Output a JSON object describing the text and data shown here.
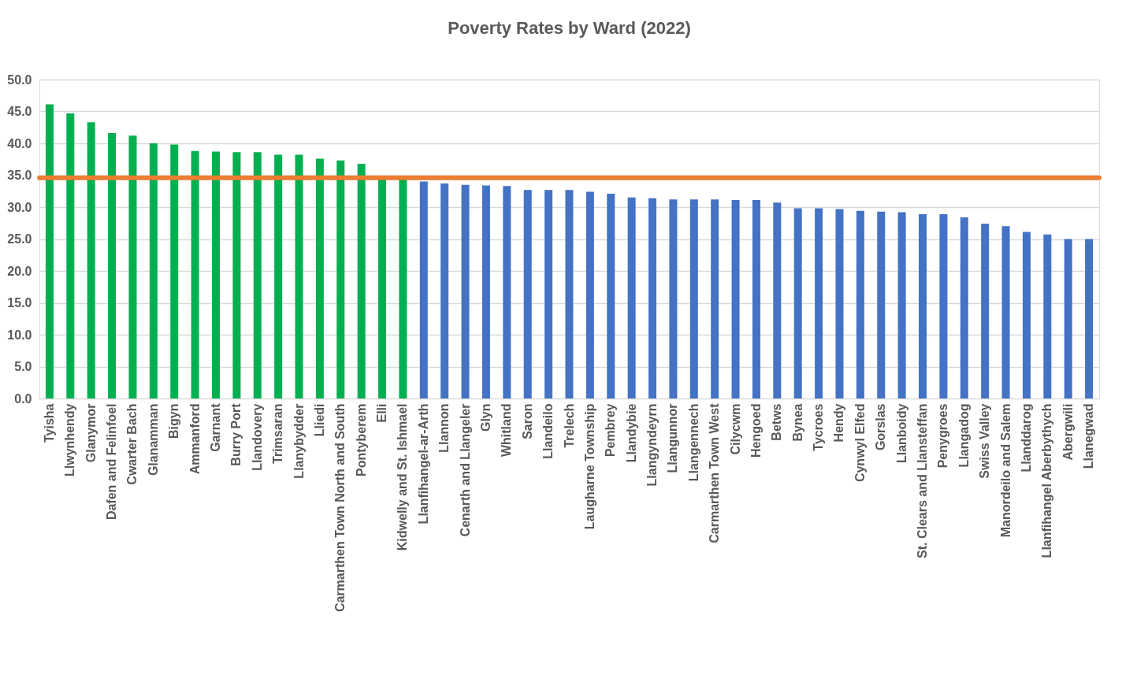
{
  "chart_data": {
    "type": "bar",
    "title": "Poverty Rates by Ward (2022)",
    "categories": [
      "Tyisha",
      "Llwynhendy",
      "Glanymor",
      "Dafen and Felinfoel",
      "Cwarter Bach",
      "Glanamman",
      "Bigyn",
      "Ammanford",
      "Garnant",
      "Burry Port",
      "Llandovery",
      "Trimsaran",
      "Llanybydder",
      "Lliedi",
      "Carmarthen Town North and South",
      "Pontyberem",
      "Elli",
      "Kidwelly and St. Ishmael",
      "Llanfihangel-ar-Arth",
      "Llannon",
      "Cenarth and Llangeler",
      "Glyn",
      "Whitland",
      "Saron",
      "Llandeilo",
      "Trelech",
      "Laugharne Township",
      "Pembrey",
      "Llandybie",
      "Llangyndeyrn",
      "Llangunnor",
      "Llangennech",
      "Carmarthen Town West",
      "Cilycwm",
      "Hengoed",
      "Betws",
      "Bynea",
      "Tycroes",
      "Hendy",
      "Cynwyl Elfed",
      "Gorslas",
      "Llanboidy",
      "St. Clears and Llansteffan",
      "Penygroes",
      "Llangadog",
      "Swiss Valley",
      "Manordeilo and Salem",
      "Llanddarog",
      "Llanfihangel Aberbythych",
      "Abergwili",
      "Llanegwad"
    ],
    "values": [
      46.1,
      44.7,
      43.3,
      41.6,
      41.2,
      40.0,
      39.8,
      38.8,
      38.7,
      38.6,
      38.6,
      38.2,
      38.2,
      37.6,
      37.3,
      36.8,
      34.5,
      34.4,
      34.0,
      33.7,
      33.5,
      33.4,
      33.3,
      32.7,
      32.7,
      32.7,
      32.4,
      32.1,
      31.5,
      31.4,
      31.2,
      31.2,
      31.2,
      31.1,
      31.1,
      30.7,
      29.8,
      29.8,
      29.7,
      29.4,
      29.3,
      29.2,
      28.9,
      28.9,
      28.4,
      27.4,
      27.0,
      26.1,
      25.7,
      25.0,
      25.0
    ],
    "colors": [
      "#00b050",
      "#00b050",
      "#00b050",
      "#00b050",
      "#00b050",
      "#00b050",
      "#00b050",
      "#00b050",
      "#00b050",
      "#00b050",
      "#00b050",
      "#00b050",
      "#00b050",
      "#00b050",
      "#00b050",
      "#00b050",
      "#00b050",
      "#00b050",
      "#4472c4",
      "#4472c4",
      "#4472c4",
      "#4472c4",
      "#4472c4",
      "#4472c4",
      "#4472c4",
      "#4472c4",
      "#4472c4",
      "#4472c4",
      "#4472c4",
      "#4472c4",
      "#4472c4",
      "#4472c4",
      "#4472c4",
      "#4472c4",
      "#4472c4",
      "#4472c4",
      "#4472c4",
      "#4472c4",
      "#4472c4",
      "#4472c4",
      "#4472c4",
      "#4472c4",
      "#4472c4",
      "#4472c4",
      "#4472c4",
      "#4472c4",
      "#4472c4",
      "#4472c4",
      "#4472c4",
      "#4472c4",
      "#4472c4"
    ],
    "ylim": [
      0,
      50
    ],
    "yticks": [
      {
        "value": 0,
        "label": "0.0"
      },
      {
        "value": 5,
        "label": "5.0"
      },
      {
        "value": 10,
        "label": "10.0"
      },
      {
        "value": 15,
        "label": "15.0"
      },
      {
        "value": 20,
        "label": "20.0"
      },
      {
        "value": 25,
        "label": "25.0"
      },
      {
        "value": 30,
        "label": "30.0"
      },
      {
        "value": 35,
        "label": "35.0"
      },
      {
        "value": 40,
        "label": "40.0"
      },
      {
        "value": 45,
        "label": "45.0"
      },
      {
        "value": 50,
        "label": "50.0"
      }
    ],
    "ref_lines": [
      {
        "axis": "y",
        "value": 34.6,
        "color": "#ed7d31"
      }
    ],
    "grid": "y"
  }
}
